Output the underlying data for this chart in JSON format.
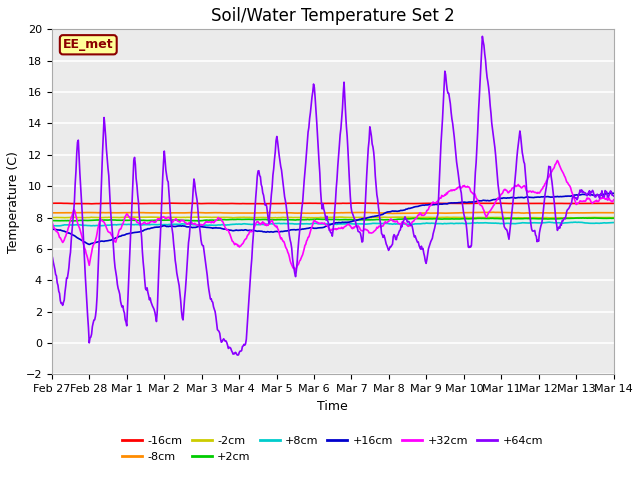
{
  "title": "Soil/Water Temperature Set 2",
  "xlabel": "Time",
  "ylabel": "Temperature (C)",
  "ylim": [
    -2,
    20
  ],
  "yticks": [
    -2,
    0,
    2,
    4,
    6,
    8,
    10,
    12,
    14,
    16,
    18,
    20
  ],
  "date_labels": [
    "Feb 27",
    "Feb 28",
    "Mar 1",
    "Mar 2",
    "Mar 3",
    "Mar 4",
    "Mar 5",
    "Mar 6",
    "Mar 7",
    "Mar 8",
    "Mar 9",
    "Mar 10",
    "Mar 11",
    "Mar 12",
    "Mar 13",
    "Mar 14"
  ],
  "annotation_text": "EE_met",
  "annotation_color": "#8B0000",
  "annotation_bg": "#FFFF99",
  "series_order": [
    "-16cm",
    "-8cm",
    "-2cm",
    "+2cm",
    "+8cm",
    "+16cm",
    "+32cm",
    "+64cm"
  ],
  "series": {
    "-16cm": {
      "color": "#FF0000",
      "lw": 1.2
    },
    "-8cm": {
      "color": "#FF8C00",
      "lw": 1.2
    },
    "-2cm": {
      "color": "#CCCC00",
      "lw": 1.2
    },
    "+2cm": {
      "color": "#00CC00",
      "lw": 1.2
    },
    "+8cm": {
      "color": "#00CCCC",
      "lw": 1.2
    },
    "+16cm": {
      "color": "#0000CD",
      "lw": 1.2
    },
    "+32cm": {
      "color": "#FF00FF",
      "lw": 1.2
    },
    "+64cm": {
      "color": "#8B00FF",
      "lw": 1.2
    }
  },
  "plot_bg": "#EBEBEB",
  "grid_color": "#FFFFFF",
  "title_fontsize": 12,
  "tick_fontsize": 8,
  "label_fontsize": 9,
  "legend_fontsize": 8
}
